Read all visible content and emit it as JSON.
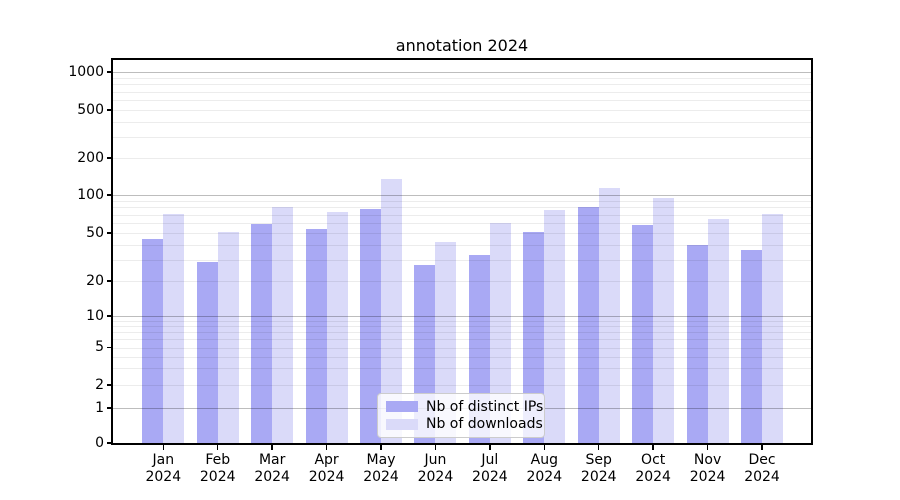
{
  "title": "annotation 2024",
  "legend": {
    "items": [
      {
        "label": "Nb of distinct IPs",
        "color": "#a9a9f4"
      },
      {
        "label": "Nb of downloads",
        "color": "#dadaf9"
      }
    ]
  },
  "chart_data": {
    "type": "bar",
    "title": "annotation 2024",
    "categories": [
      "Jan 2024",
      "Feb 2024",
      "Mar 2024",
      "Apr 2024",
      "May 2024",
      "Jun 2024",
      "Jul 2024",
      "Aug 2024",
      "Sep 2024",
      "Oct 2024",
      "Nov 2024",
      "Dec 2024"
    ],
    "series": [
      {
        "name": "Nb of distinct IPs",
        "color": "#a9a9f4",
        "values": [
          45,
          29,
          59,
          54,
          78,
          27,
          33,
          51,
          81,
          58,
          40,
          36
        ]
      },
      {
        "name": "Nb of downloads",
        "color": "#dadaf9",
        "values": [
          71,
          51,
          80,
          74,
          136,
          42,
          60,
          76,
          113,
          95,
          64,
          71
        ]
      }
    ],
    "yscale": "symlog",
    "y_ticks": [
      0,
      1,
      2,
      5,
      10,
      20,
      50,
      100,
      200,
      500,
      1000
    ],
    "ylim": [
      0,
      1400
    ],
    "xlabel": "",
    "ylabel": "",
    "grid": true,
    "legend_position": "lower center"
  }
}
